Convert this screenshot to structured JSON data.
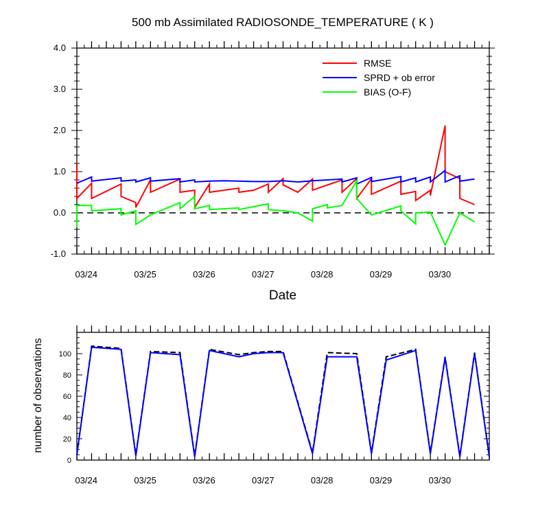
{
  "chart_data": [
    {
      "type": "line",
      "title": "500 mb Assimilated RADIOSONDE_TEMPERATURE ( K )",
      "xlabel": "Date",
      "ylabel": "",
      "xlim": [
        0,
        7.0
      ],
      "ylim": [
        -1.0,
        4.0
      ],
      "y_ticks": [
        -1.0,
        0.0,
        1.0,
        2.0,
        3.0,
        4.0
      ],
      "y_tick_labels": [
        "-1.0",
        "0.0",
        "1.0",
        "2.0",
        "3.0",
        "4.0"
      ],
      "x_ticks": [
        0.125,
        1.125,
        2.125,
        3.125,
        4.125,
        5.125,
        6.125
      ],
      "x_tick_labels": [
        "03/24",
        "03/25",
        "03/26",
        "03/27",
        "03/28",
        "03/29",
        "03/30"
      ],
      "reference_line": {
        "y": 0.0,
        "style": "dashed"
      },
      "legend_position": "top-right",
      "series": [
        {
          "name": "RMSE",
          "color": "#ff0000",
          "points": [
            [
              0,
              1.2
            ],
            [
              0,
              0.35
            ],
            [
              0.25,
              0.72
            ],
            [
              0.25,
              0.35
            ],
            [
              0.75,
              0.7
            ],
            [
              0.75,
              0.4
            ],
            [
              1,
              0.25
            ],
            [
              1,
              0.13
            ],
            [
              1.25,
              0.8
            ],
            [
              1.25,
              0.5
            ],
            [
              1.75,
              0.82
            ],
            [
              1.75,
              0.5
            ],
            [
              2,
              0.55
            ],
            [
              2,
              0.13
            ],
            [
              2.25,
              0.7
            ],
            [
              2.25,
              0.5
            ],
            [
              2.75,
              0.6
            ],
            [
              2.75,
              0.5
            ],
            [
              3,
              0.55
            ],
            [
              3.25,
              0.7
            ],
            [
              3.25,
              0.5
            ],
            [
              3.5,
              0.83
            ],
            [
              3.5,
              0.68
            ],
            [
              3.75,
              0.5
            ],
            [
              4,
              0.82
            ],
            [
              4,
              0.55
            ],
            [
              4.5,
              0.8
            ],
            [
              4.5,
              0.5
            ],
            [
              4.75,
              0.83
            ],
            [
              4.75,
              0.35
            ],
            [
              5,
              0.83
            ],
            [
              5,
              0.45
            ],
            [
              5.5,
              0.77
            ],
            [
              5.5,
              0.45
            ],
            [
              5.75,
              0.52
            ],
            [
              5.75,
              0.3
            ],
            [
              6,
              0.55
            ],
            [
              6,
              0.42
            ],
            [
              6.25,
              2.12
            ],
            [
              6.25,
              1.0
            ],
            [
              6.5,
              0.83
            ],
            [
              6.5,
              0.35
            ],
            [
              6.75,
              0.2
            ]
          ]
        },
        {
          "name": "SPRD + ob error",
          "color": "#0000ff",
          "points": [
            [
              0,
              0.72
            ],
            [
              0.25,
              0.87
            ],
            [
              0.25,
              0.77
            ],
            [
              0.75,
              0.85
            ],
            [
              0.75,
              0.77
            ],
            [
              1,
              0.8
            ],
            [
              1,
              0.75
            ],
            [
              1.25,
              0.85
            ],
            [
              1.25,
              0.77
            ],
            [
              1.75,
              0.83
            ],
            [
              1.75,
              0.75
            ],
            [
              2,
              0.8
            ],
            [
              2,
              0.75
            ],
            [
              2.25,
              0.77
            ],
            [
              2.5,
              0.78
            ],
            [
              2.75,
              0.77
            ],
            [
              3,
              0.76
            ],
            [
              3.25,
              0.76
            ],
            [
              3.5,
              0.78
            ],
            [
              3.75,
              0.75
            ],
            [
              4,
              0.78
            ],
            [
              4.5,
              0.82
            ],
            [
              4.5,
              0.75
            ],
            [
              4.75,
              0.85
            ],
            [
              4.75,
              0.7
            ],
            [
              5,
              0.86
            ],
            [
              5,
              0.76
            ],
            [
              5.5,
              0.88
            ],
            [
              5.5,
              0.75
            ],
            [
              5.75,
              0.85
            ],
            [
              5.75,
              0.75
            ],
            [
              6,
              0.87
            ],
            [
              6,
              0.75
            ],
            [
              6.25,
              1.03
            ],
            [
              6.25,
              0.75
            ],
            [
              6.5,
              0.9
            ],
            [
              6.5,
              0.77
            ],
            [
              6.75,
              0.82
            ]
          ]
        },
        {
          "name": "BIAS (O-F)",
          "color": "#00ff00",
          "points": [
            [
              0,
              -0.35
            ],
            [
              0,
              0.18
            ],
            [
              0.25,
              0.18
            ],
            [
              0.25,
              0.05
            ],
            [
              0.75,
              0.1
            ],
            [
              0.75,
              -0.05
            ],
            [
              1,
              0.05
            ],
            [
              1,
              -0.28
            ],
            [
              1.25,
              -0.05
            ],
            [
              1.75,
              0.25
            ],
            [
              1.75,
              0.1
            ],
            [
              2,
              0.4
            ],
            [
              2,
              0.1
            ],
            [
              2.25,
              0.18
            ],
            [
              2.25,
              0.08
            ],
            [
              2.75,
              0.12
            ],
            [
              2.75,
              0.08
            ],
            [
              3.25,
              0.22
            ],
            [
              3.25,
              0.08
            ],
            [
              3.5,
              0.05
            ],
            [
              3.75,
              0.0
            ],
            [
              4,
              -0.2
            ],
            [
              4,
              0.1
            ],
            [
              4.25,
              0.2
            ],
            [
              4.25,
              0.12
            ],
            [
              4.5,
              0.18
            ],
            [
              4.75,
              0.78
            ],
            [
              4.75,
              0.35
            ],
            [
              5,
              -0.05
            ],
            [
              5.5,
              0.17
            ],
            [
              5.5,
              0.05
            ],
            [
              5.75,
              -0.27
            ],
            [
              5.75,
              0.0
            ],
            [
              6,
              0.02
            ],
            [
              6.25,
              -0.78
            ],
            [
              6.5,
              0.0
            ],
            [
              6.75,
              -0.22
            ]
          ]
        }
      ]
    },
    {
      "type": "line",
      "title": "",
      "xlabel": "",
      "ylabel": "number of observations",
      "xlim": [
        0,
        7.0
      ],
      "ylim": [
        0,
        120
      ],
      "y_ticks": [
        0,
        20,
        40,
        60,
        80,
        100
      ],
      "y_tick_labels": [
        "0",
        "20",
        "40",
        "60",
        "80",
        "100"
      ],
      "x_ticks": [
        0.125,
        1.125,
        2.125,
        3.125,
        4.125,
        5.125,
        6.125
      ],
      "x_tick_labels": [
        "03/24",
        "03/25",
        "03/26",
        "03/27",
        "03/28",
        "03/29",
        "03/30"
      ],
      "series": [
        {
          "style": "dashed",
          "color": "#000000",
          "points": [
            [
              0,
              5
            ],
            [
              0.25,
              107
            ],
            [
              0.75,
              105
            ],
            [
              1,
              5
            ],
            [
              1.25,
              102
            ],
            [
              1.75,
              101
            ],
            [
              2,
              4
            ],
            [
              2.25,
              104
            ],
            [
              2.75,
              99
            ],
            [
              3,
              101
            ],
            [
              3.25,
              102
            ],
            [
              3.5,
              102
            ],
            [
              4,
              7
            ],
            [
              4.25,
              101
            ],
            [
              4.75,
              100
            ],
            [
              5,
              7
            ],
            [
              5.25,
              97
            ],
            [
              5.75,
              104
            ],
            [
              6,
              7
            ],
            [
              6.25,
              97
            ],
            [
              6.5,
              4
            ],
            [
              6.75,
              101
            ],
            [
              7.0,
              4
            ]
          ]
        },
        {
          "style": "solid",
          "color": "#0000ff",
          "points": [
            [
              0,
              5
            ],
            [
              0.25,
              106
            ],
            [
              0.75,
              104
            ],
            [
              1,
              4
            ],
            [
              1.25,
              101
            ],
            [
              1.75,
              99
            ],
            [
              2,
              3
            ],
            [
              2.25,
              103
            ],
            [
              2.75,
              97
            ],
            [
              3,
              100
            ],
            [
              3.25,
              101
            ],
            [
              3.5,
              101
            ],
            [
              4,
              6
            ],
            [
              4.25,
              97
            ],
            [
              4.75,
              97
            ],
            [
              5,
              6
            ],
            [
              5.25,
              94
            ],
            [
              5.75,
              103
            ],
            [
              6,
              6
            ],
            [
              6.25,
              96
            ],
            [
              6.5,
              3
            ],
            [
              6.75,
              100
            ],
            [
              7.0,
              3
            ]
          ]
        }
      ]
    }
  ]
}
